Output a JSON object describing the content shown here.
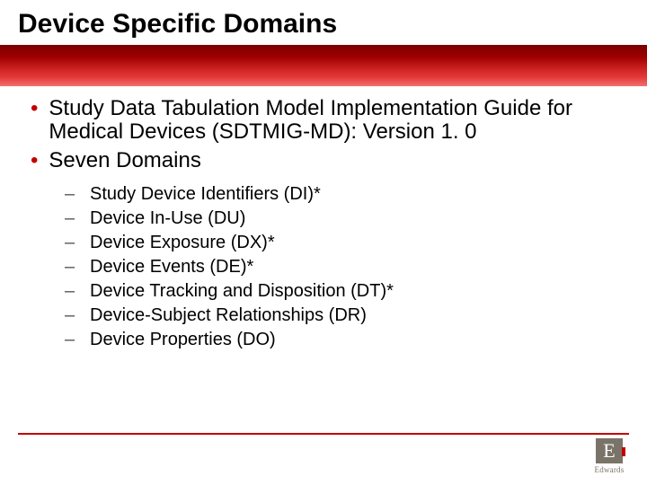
{
  "title": "Device Specific Domains",
  "colors": {
    "accent_red": "#c00000",
    "band_gradient_top": "#7a0000",
    "band_gradient_bottom": "#f07070",
    "text": "#000000",
    "dash": "#555555",
    "logo_bg": "#7a7468",
    "logo_fg": "#ffffff",
    "background": "#ffffff"
  },
  "typography": {
    "title_fontsize": 30,
    "bullet_fontsize": 24,
    "subbullet_fontsize": 20,
    "font_family": "Arial"
  },
  "bullets": [
    "Study Data Tabulation Model Implementation Guide for Medical Devices (SDTMIG-MD): Version 1. 0",
    "Seven Domains"
  ],
  "sub_bullets": [
    "Study Device Identifiers (DI)*",
    "Device In-Use (DU)",
    "Device Exposure (DX)*",
    "Device Events (DE)*",
    "Device Tracking and Disposition (DT)*",
    "Device-Subject Relationships (DR)",
    "Device Properties (DO)"
  ],
  "logo": {
    "letter": "E",
    "name": "Edwards"
  }
}
